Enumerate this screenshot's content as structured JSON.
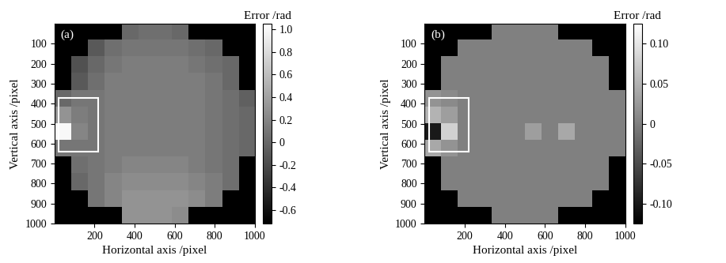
{
  "chart_data": [
    {
      "type": "heatmap",
      "annotations": [
        "(a)"
      ],
      "x_label": "Horizontal axis /pixel",
      "y_label": "Vertical axis /pixel",
      "xlim": [
        0,
        1000
      ],
      "ylim": [
        1000,
        0
      ],
      "xticks": [
        200,
        400,
        600,
        800,
        1000
      ],
      "yticks": [
        100,
        200,
        300,
        400,
        500,
        600,
        700,
        800,
        900,
        1000
      ],
      "cells": [
        [
          null,
          null,
          null,
          null,
          0.0,
          0.05,
          0.05,
          0.0,
          null,
          null,
          null,
          null
        ],
        [
          null,
          null,
          -0.1,
          0.05,
          0.1,
          0.1,
          0.1,
          0.1,
          0.05,
          0.0,
          null,
          null
        ],
        [
          null,
          -0.15,
          0.0,
          0.1,
          0.15,
          0.15,
          0.15,
          0.15,
          0.1,
          0.05,
          0.0,
          null
        ],
        [
          null,
          -0.1,
          0.05,
          0.15,
          0.15,
          0.15,
          0.15,
          0.15,
          0.15,
          0.1,
          0.0,
          null
        ],
        [
          0.0,
          0.1,
          0.1,
          0.15,
          0.15,
          0.15,
          0.15,
          0.15,
          0.15,
          0.1,
          0.05,
          -0.05
        ],
        [
          0.3,
          0.15,
          0.1,
          0.15,
          0.15,
          0.15,
          0.15,
          0.15,
          0.15,
          0.1,
          0.05,
          0.0
        ],
        [
          1.0,
          0.2,
          0.1,
          0.15,
          0.15,
          0.15,
          0.15,
          0.15,
          0.15,
          0.1,
          0.05,
          0.0
        ],
        [
          0.1,
          0.1,
          0.1,
          0.15,
          0.15,
          0.15,
          0.15,
          0.15,
          0.15,
          0.1,
          0.05,
          0.0
        ],
        [
          null,
          0.05,
          0.1,
          0.15,
          0.2,
          0.2,
          0.2,
          0.2,
          0.15,
          0.1,
          0.05,
          null
        ],
        [
          null,
          0.0,
          0.1,
          0.2,
          0.25,
          0.25,
          0.25,
          0.25,
          0.2,
          0.15,
          0.05,
          null
        ],
        [
          null,
          null,
          0.1,
          0.2,
          0.3,
          0.3,
          0.3,
          0.3,
          0.25,
          0.15,
          null,
          null
        ],
        [
          null,
          null,
          null,
          null,
          0.3,
          0.3,
          0.3,
          0.25,
          null,
          null,
          null,
          null
        ]
      ],
      "colorbar_title": "Error /rad",
      "color_range": [
        -0.72,
        1.05
      ],
      "color_ticks": [
        -0.6,
        -0.4,
        -0.2,
        0,
        0.2,
        0.4,
        0.6,
        0.8,
        {
          "value": 1.0,
          "label": "1.0"
        }
      ]
    },
    {
      "type": "heatmap",
      "annotations": [
        "(b)"
      ],
      "x_label": "Horizontal axis /pixel",
      "y_label": "Vertical axis /pixel",
      "xlim": [
        0,
        1000
      ],
      "ylim": [
        1000,
        0
      ],
      "xticks": [
        200,
        400,
        600,
        800,
        1000
      ],
      "yticks": [
        100,
        200,
        300,
        400,
        500,
        600,
        700,
        800,
        900,
        1000
      ],
      "cells": [
        [
          null,
          null,
          null,
          null,
          0.0,
          0.0,
          0.0,
          0.0,
          null,
          null,
          null,
          null
        ],
        [
          null,
          null,
          0.0,
          0.0,
          0.0,
          0.0,
          0.0,
          0.0,
          0.0,
          0.0,
          null,
          null
        ],
        [
          null,
          0.0,
          0.0,
          0.0,
          0.0,
          0.0,
          0.0,
          0.0,
          0.0,
          0.0,
          0.0,
          null
        ],
        [
          null,
          0.0,
          0.0,
          0.0,
          0.0,
          0.0,
          0.0,
          0.0,
          0.0,
          0.0,
          0.0,
          null
        ],
        [
          0.02,
          0.01,
          0.0,
          0.0,
          0.0,
          0.0,
          0.0,
          0.0,
          0.0,
          0.0,
          0.0,
          0.0
        ],
        [
          0.05,
          0.03,
          0.0,
          0.0,
          0.0,
          0.0,
          0.0,
          0.0,
          0.0,
          0.0,
          0.0,
          0.0
        ],
        [
          -0.1,
          0.08,
          0.0,
          0.0,
          0.0,
          0.0,
          0.03,
          0.0,
          0.04,
          0.0,
          0.0,
          0.0
        ],
        [
          0.04,
          0.02,
          0.0,
          0.0,
          0.0,
          0.0,
          0.0,
          0.0,
          0.0,
          0.0,
          0.0,
          0.0
        ],
        [
          null,
          0.0,
          0.0,
          0.0,
          0.0,
          0.0,
          0.0,
          0.0,
          0.0,
          0.0,
          0.0,
          null
        ],
        [
          null,
          0.0,
          0.0,
          0.0,
          0.0,
          0.0,
          0.0,
          0.0,
          0.0,
          0.0,
          0.0,
          null
        ],
        [
          null,
          null,
          0.0,
          0.0,
          0.0,
          0.0,
          0.0,
          0.0,
          0.0,
          0.0,
          null,
          null
        ],
        [
          null,
          null,
          null,
          null,
          0.0,
          0.0,
          0.0,
          0.0,
          null,
          null,
          null,
          null
        ]
      ],
      "colorbar_title": "Error /rad",
      "color_range": [
        -0.125,
        0.125
      ],
      "color_ticks": [
        {
          "value": -0.1,
          "label": "-0.10"
        },
        -0.05,
        0,
        0.05,
        {
          "value": 0.1,
          "label": "0.10"
        }
      ]
    }
  ]
}
